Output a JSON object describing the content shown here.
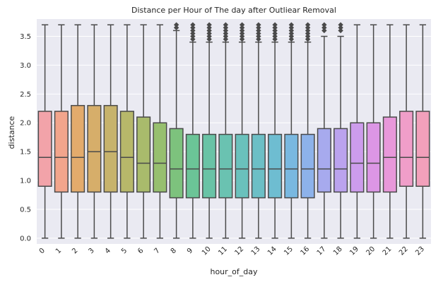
{
  "chart_data": {
    "type": "box",
    "title": "Distance per Hour of The day after Outliear Removal",
    "xlabel": "hour_of_day",
    "ylabel": "distance",
    "ylim": [
      -0.1,
      3.8
    ],
    "yticks": [
      "0.0",
      "0.5",
      "1.0",
      "1.5",
      "2.0",
      "2.5",
      "3.0",
      "3.5"
    ],
    "grid": true,
    "background": "#eaeaf2",
    "categories": [
      "0",
      "1",
      "2",
      "3",
      "4",
      "5",
      "6",
      "7",
      "8",
      "9",
      "10",
      "11",
      "12",
      "13",
      "14",
      "15",
      "16",
      "17",
      "18",
      "19",
      "20",
      "21",
      "22",
      "23"
    ],
    "colors": [
      "#f2a3a9",
      "#f2a58c",
      "#e3ab6c",
      "#d6ae6a",
      "#c7b36c",
      "#b7b86a",
      "#a9bb6c",
      "#97bf6f",
      "#7dc27d",
      "#6bc497",
      "#69c3a6",
      "#6ac2b1",
      "#6ac1bc",
      "#6cbfc6",
      "#6ebdd1",
      "#79b8e0",
      "#8db2ea",
      "#a7aaee",
      "#bba3ee",
      "#cd9cec",
      "#dc96e5",
      "#e898da",
      "#f09ec9",
      "#f2a0bb"
    ],
    "boxes": [
      {
        "whisker_low": 0.0,
        "q1": 0.9,
        "median": 1.4,
        "q3": 2.2,
        "whisker_high": 3.7,
        "outliers": []
      },
      {
        "whisker_low": 0.0,
        "q1": 0.8,
        "median": 1.4,
        "q3": 2.2,
        "whisker_high": 3.7,
        "outliers": []
      },
      {
        "whisker_low": 0.0,
        "q1": 0.8,
        "median": 1.4,
        "q3": 2.3,
        "whisker_high": 3.7,
        "outliers": []
      },
      {
        "whisker_low": 0.0,
        "q1": 0.8,
        "median": 1.5,
        "q3": 2.3,
        "whisker_high": 3.7,
        "outliers": []
      },
      {
        "whisker_low": 0.0,
        "q1": 0.8,
        "median": 1.5,
        "q3": 2.3,
        "whisker_high": 3.7,
        "outliers": []
      },
      {
        "whisker_low": 0.0,
        "q1": 0.8,
        "median": 1.4,
        "q3": 2.2,
        "whisker_high": 3.7,
        "outliers": []
      },
      {
        "whisker_low": 0.0,
        "q1": 0.8,
        "median": 1.3,
        "q3": 2.1,
        "whisker_high": 3.7,
        "outliers": []
      },
      {
        "whisker_low": 0.0,
        "q1": 0.8,
        "median": 1.3,
        "q3": 2.0,
        "whisker_high": 3.7,
        "outliers": []
      },
      {
        "whisker_low": 0.0,
        "q1": 0.7,
        "median": 1.2,
        "q3": 1.9,
        "whisker_high": 3.6,
        "outliers": [
          3.65,
          3.7
        ]
      },
      {
        "whisker_low": 0.0,
        "q1": 0.7,
        "median": 1.2,
        "q3": 1.8,
        "whisker_high": 3.4,
        "outliers": [
          3.45,
          3.5,
          3.55,
          3.6,
          3.65,
          3.7
        ]
      },
      {
        "whisker_low": 0.0,
        "q1": 0.7,
        "median": 1.2,
        "q3": 1.8,
        "whisker_high": 3.4,
        "outliers": [
          3.45,
          3.5,
          3.55,
          3.6,
          3.65,
          3.7
        ]
      },
      {
        "whisker_low": 0.0,
        "q1": 0.7,
        "median": 1.2,
        "q3": 1.8,
        "whisker_high": 3.4,
        "outliers": [
          3.45,
          3.5,
          3.55,
          3.6,
          3.65,
          3.7
        ]
      },
      {
        "whisker_low": 0.0,
        "q1": 0.7,
        "median": 1.2,
        "q3": 1.8,
        "whisker_high": 3.4,
        "outliers": [
          3.45,
          3.5,
          3.55,
          3.6,
          3.65,
          3.7
        ]
      },
      {
        "whisker_low": 0.0,
        "q1": 0.7,
        "median": 1.2,
        "q3": 1.8,
        "whisker_high": 3.4,
        "outliers": [
          3.45,
          3.5,
          3.55,
          3.6,
          3.65,
          3.7
        ]
      },
      {
        "whisker_low": 0.0,
        "q1": 0.7,
        "median": 1.2,
        "q3": 1.8,
        "whisker_high": 3.4,
        "outliers": [
          3.45,
          3.5,
          3.55,
          3.6,
          3.65,
          3.7
        ]
      },
      {
        "whisker_low": 0.0,
        "q1": 0.7,
        "median": 1.2,
        "q3": 1.8,
        "whisker_high": 3.4,
        "outliers": [
          3.45,
          3.5,
          3.55,
          3.6,
          3.65,
          3.7
        ]
      },
      {
        "whisker_low": 0.0,
        "q1": 0.7,
        "median": 1.2,
        "q3": 1.8,
        "whisker_high": 3.4,
        "outliers": [
          3.45,
          3.5,
          3.55,
          3.6,
          3.65,
          3.7
        ]
      },
      {
        "whisker_low": 0.0,
        "q1": 0.8,
        "median": 1.2,
        "q3": 1.9,
        "whisker_high": 3.5,
        "outliers": [
          3.6,
          3.65,
          3.7
        ]
      },
      {
        "whisker_low": 0.0,
        "q1": 0.8,
        "median": 1.2,
        "q3": 1.9,
        "whisker_high": 3.5,
        "outliers": [
          3.6,
          3.65,
          3.7
        ]
      },
      {
        "whisker_low": 0.0,
        "q1": 0.8,
        "median": 1.3,
        "q3": 2.0,
        "whisker_high": 3.7,
        "outliers": []
      },
      {
        "whisker_low": 0.0,
        "q1": 0.8,
        "median": 1.3,
        "q3": 2.0,
        "whisker_high": 3.7,
        "outliers": []
      },
      {
        "whisker_low": 0.0,
        "q1": 0.8,
        "median": 1.4,
        "q3": 2.1,
        "whisker_high": 3.7,
        "outliers": []
      },
      {
        "whisker_low": 0.0,
        "q1": 0.9,
        "median": 1.4,
        "q3": 2.2,
        "whisker_high": 3.7,
        "outliers": []
      },
      {
        "whisker_low": 0.0,
        "q1": 0.9,
        "median": 1.4,
        "q3": 2.2,
        "whisker_high": 3.7,
        "outliers": []
      }
    ]
  }
}
